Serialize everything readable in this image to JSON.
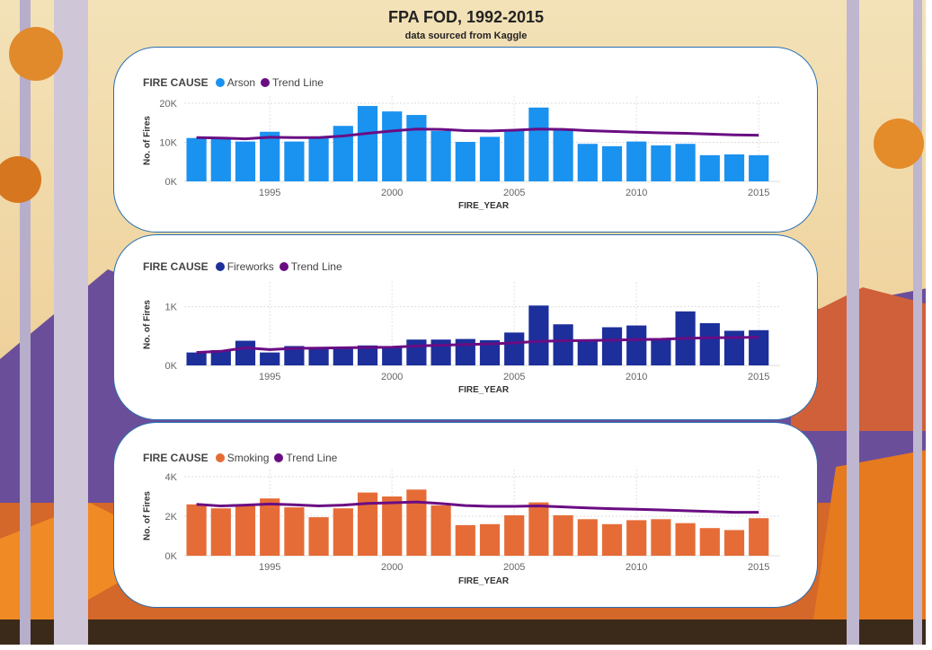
{
  "page": {
    "title": "FPA FOD, 1992-2015",
    "subtitle": "data sourced from Kaggle"
  },
  "colors": {
    "trend": "#6a0d83",
    "arson": "#1a92f0",
    "fireworks": "#1c2f9b",
    "smoking": "#e66c37"
  },
  "chart_data": [
    {
      "type": "bar",
      "legend_title": "FIRE CAUSE",
      "series": [
        {
          "name": "Arson",
          "values": [
            11100,
            11000,
            10200,
            12700,
            10200,
            11100,
            14200,
            19300,
            17900,
            17000,
            12900,
            10100,
            11400,
            13100,
            18900,
            13500,
            9600,
            9000,
            10200,
            9200,
            9600,
            6700,
            6900,
            6700
          ]
        },
        {
          "name": "Trend Line",
          "type": "line",
          "values": [
            11200,
            11100,
            10900,
            11300,
            11200,
            11200,
            11600,
            12300,
            12900,
            13400,
            13300,
            13000,
            12900,
            13100,
            13400,
            13300,
            13000,
            12800,
            12600,
            12400,
            12300,
            12100,
            11900,
            11800
          ]
        }
      ],
      "x": [
        1992,
        1993,
        1994,
        1995,
        1996,
        1997,
        1998,
        1999,
        2000,
        2001,
        2002,
        2003,
        2004,
        2005,
        2006,
        2007,
        2008,
        2009,
        2010,
        2011,
        2012,
        2013,
        2014,
        2015
      ],
      "x_ticks": [
        "1995",
        "2000",
        "2005",
        "2010",
        "2015"
      ],
      "y_ticks": [
        "0K",
        "10K",
        "20K"
      ],
      "ylim": [
        0,
        20000
      ],
      "xlabel": "FIRE_YEAR",
      "ylabel": "No. of Fires"
    },
    {
      "type": "bar",
      "legend_title": "FIRE CAUSE",
      "series": [
        {
          "name": "Fireworks",
          "values": [
            220,
            260,
            420,
            220,
            330,
            310,
            310,
            340,
            310,
            440,
            440,
            450,
            430,
            560,
            1020,
            700,
            430,
            650,
            680,
            460,
            920,
            720,
            590,
            600
          ]
        },
        {
          "name": "Trend Line",
          "type": "line",
          "values": [
            220,
            240,
            300,
            270,
            290,
            295,
            300,
            305,
            310,
            330,
            345,
            355,
            365,
            385,
            410,
            420,
            425,
            430,
            440,
            445,
            460,
            470,
            475,
            480
          ]
        }
      ],
      "x": [
        1992,
        1993,
        1994,
        1995,
        1996,
        1997,
        1998,
        1999,
        2000,
        2001,
        2002,
        2003,
        2004,
        2005,
        2006,
        2007,
        2008,
        2009,
        2010,
        2011,
        2012,
        2013,
        2014,
        2015
      ],
      "x_ticks": [
        "1995",
        "2000",
        "2005",
        "2010",
        "2015"
      ],
      "y_ticks": [
        "0K",
        "1K"
      ],
      "ylim": [
        0,
        1300
      ],
      "xlabel": "FIRE_YEAR",
      "ylabel": "No. of Fires"
    },
    {
      "type": "bar",
      "legend_title": "FIRE CAUSE",
      "series": [
        {
          "name": "Smoking",
          "values": [
            2600,
            2400,
            2550,
            2900,
            2450,
            1950,
            2400,
            3200,
            3000,
            3350,
            2550,
            1550,
            1600,
            2050,
            2700,
            2050,
            1850,
            1600,
            1800,
            1850,
            1650,
            1400,
            1300,
            1900
          ]
        },
        {
          "name": "Trend Line",
          "type": "line",
          "values": [
            2600,
            2520,
            2560,
            2620,
            2580,
            2520,
            2560,
            2650,
            2680,
            2720,
            2640,
            2540,
            2500,
            2500,
            2520,
            2470,
            2420,
            2380,
            2350,
            2320,
            2280,
            2240,
            2200,
            2200
          ]
        }
      ],
      "x": [
        1992,
        1993,
        1994,
        1995,
        1996,
        1997,
        1998,
        1999,
        2000,
        2001,
        2002,
        2003,
        2004,
        2005,
        2006,
        2007,
        2008,
        2009,
        2010,
        2011,
        2012,
        2013,
        2014,
        2015
      ],
      "x_ticks": [
        "1995",
        "2000",
        "2005",
        "2010",
        "2015"
      ],
      "y_ticks": [
        "0K",
        "2K",
        "4K"
      ],
      "ylim": [
        0,
        4000
      ],
      "xlabel": "FIRE_YEAR",
      "ylabel": "No. of Fires"
    }
  ]
}
